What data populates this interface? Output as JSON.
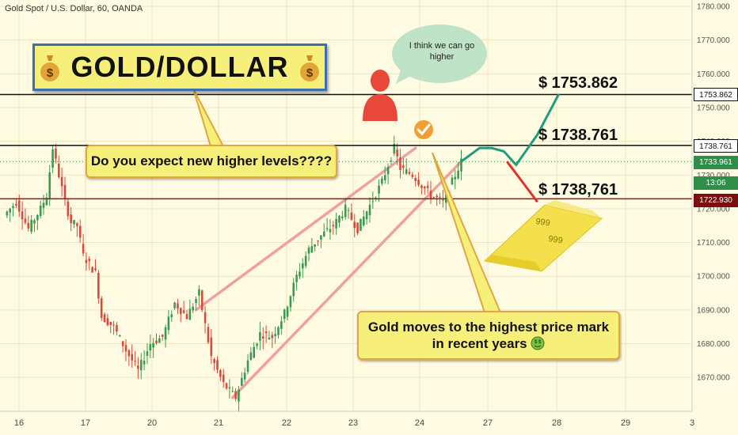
{
  "header": {
    "symbol": "Gold Spot / U.S. Dollar, 60, OANDA"
  },
  "title": {
    "text": "GOLD/DOLLAR"
  },
  "callouts": {
    "question": "Do you expect new higher levels????",
    "analysis_line1": "Gold moves to the highest price mark",
    "analysis_line2": "in recent years",
    "speech": "I think we can go higher"
  },
  "levels": {
    "upper": "$ 1753.862",
    "middle": "$ 1738.761",
    "lower": "$ 1738,761"
  },
  "gold_bar": {
    "mark1": "999",
    "mark2": "999"
  },
  "price_badges": {
    "level1": "1753.862",
    "level2": "1738.761",
    "current": "1733.961",
    "timer": "13:06",
    "level3": "1722.930"
  },
  "colors": {
    "background": "#fffbe2",
    "up_candle": "#3a9a52",
    "down_candle": "#d64b3e",
    "channel": "#f0a0a0",
    "callout_fill": "#f6f07a",
    "title_border": "#3c6fb0",
    "level_red": "#b22222",
    "projection_green": "#1e9c7c"
  },
  "chart_data": {
    "type": "candlestick",
    "title": "",
    "xlabel": "",
    "ylabel": "",
    "ylim": [
      1660,
      1782
    ],
    "x_ticks": [
      "16",
      "17",
      "20",
      "21",
      "22",
      "23",
      "24",
      "27",
      "28",
      "29",
      "3"
    ],
    "y_ticks": [
      "1670.000",
      "1680.000",
      "1690.000",
      "1700.000",
      "1710.000",
      "1720.000",
      "1730.000",
      "1740.000",
      "1750.000",
      "1760.000",
      "1770.000",
      "1780.000"
    ],
    "close_path": [
      [
        0,
        1718
      ],
      [
        4,
        1722
      ],
      [
        8,
        1714
      ],
      [
        12,
        1720
      ],
      [
        14,
        1724
      ],
      [
        16,
        1738
      ],
      [
        18,
        1730
      ],
      [
        20,
        1722
      ],
      [
        22,
        1716
      ],
      [
        24,
        1715
      ],
      [
        26,
        1706
      ],
      [
        30,
        1701
      ],
      [
        32,
        1688
      ],
      [
        36,
        1685
      ],
      [
        40,
        1678
      ],
      [
        44,
        1672
      ],
      [
        48,
        1680
      ],
      [
        52,
        1682
      ],
      [
        56,
        1692
      ],
      [
        60,
        1688
      ],
      [
        64,
        1695
      ],
      [
        68,
        1676
      ],
      [
        72,
        1668
      ],
      [
        76,
        1664
      ],
      [
        80,
        1675
      ],
      [
        84,
        1683
      ],
      [
        88,
        1682
      ],
      [
        92,
        1689
      ],
      [
        96,
        1700
      ],
      [
        100,
        1708
      ],
      [
        104,
        1712
      ],
      [
        108,
        1715
      ],
      [
        112,
        1720
      ],
      [
        116,
        1714
      ],
      [
        120,
        1721
      ],
      [
        124,
        1728
      ],
      [
        128,
        1738
      ],
      [
        130,
        1732
      ],
      [
        134,
        1730
      ],
      [
        138,
        1726
      ],
      [
        140,
        1724
      ],
      [
        144,
        1722
      ],
      [
        148,
        1730
      ],
      [
        150,
        1734
      ]
    ],
    "reference_lines": [
      1753.862,
      1738.761,
      1722.93
    ],
    "last_price": 1733.961,
    "channel": {
      "lower": [
        [
          75,
          1664
        ],
        [
          150,
          1734
        ]
      ],
      "upper": [
        [
          63,
          1690
        ],
        [
          135,
          1738
        ]
      ]
    },
    "projections": {
      "bullish": [
        [
          150,
          1734
        ],
        [
          156,
          1738
        ],
        [
          160,
          1738
        ],
        [
          164,
          1737
        ],
        [
          168,
          1733
        ],
        [
          175,
          1742
        ],
        [
          182,
          1754
        ]
      ],
      "bearish": [
        [
          165,
          1734
        ],
        [
          170,
          1728
        ],
        [
          175,
          1722
        ]
      ]
    }
  }
}
